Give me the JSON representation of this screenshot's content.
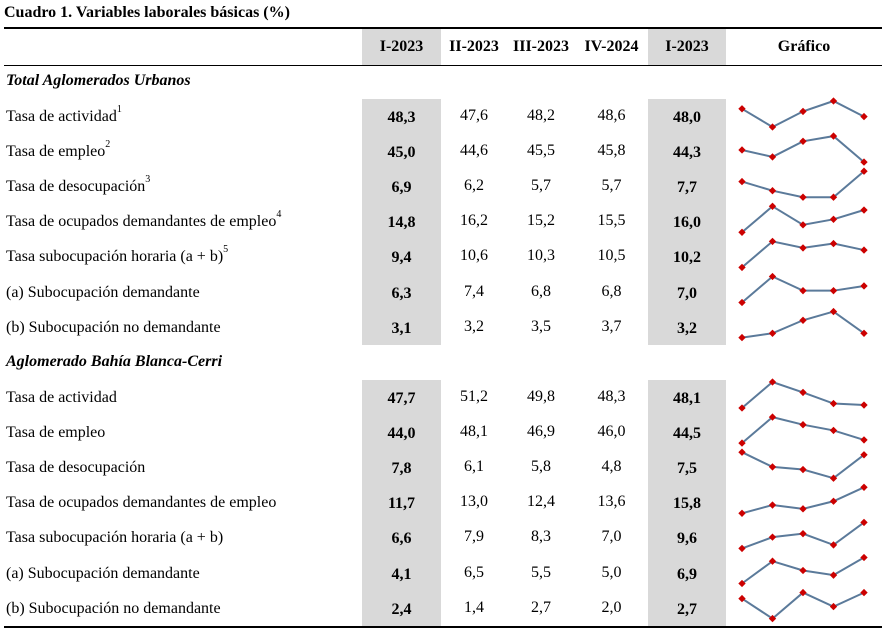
{
  "title": "Cuadro 1. Variables laborales básicas (%)",
  "headers": [
    "I-2023",
    "II-2023",
    "III-2023",
    "IV-2024",
    "I-2023",
    "Gráfico"
  ],
  "sections": [
    {
      "name": "Total Aglomerados Urbanos",
      "rows": [
        {
          "label": "Tasa de actividad",
          "sup": "1",
          "values": [
            "48,3",
            "47,6",
            "48,2",
            "48,6",
            "48,0"
          ]
        },
        {
          "label": "Tasa de empleo",
          "sup": "2",
          "values": [
            "45,0",
            "44,6",
            "45,5",
            "45,8",
            "44,3"
          ]
        },
        {
          "label": "Tasa de desocupación",
          "sup": "3",
          "values": [
            "6,9",
            "6,2",
            "5,7",
            "5,7",
            "7,7"
          ]
        },
        {
          "label": "Tasa de ocupados demandantes de empleo",
          "sup": "4",
          "values": [
            "14,8",
            "16,2",
            "15,2",
            "15,5",
            "16,0"
          ]
        },
        {
          "label": "Tasa subocupación horaria (a + b)",
          "sup": "5",
          "values": [
            "9,4",
            "10,6",
            "10,3",
            "10,5",
            "10,2"
          ]
        },
        {
          "label": "(a) Subocupación demandante",
          "sup": "",
          "values": [
            "6,3",
            "7,4",
            "6,8",
            "6,8",
            "7,0"
          ]
        },
        {
          "label": "(b) Subocupación no demandante",
          "sup": "",
          "values": [
            "3,1",
            "3,2",
            "3,5",
            "3,7",
            "3,2"
          ]
        }
      ]
    },
    {
      "name": "Aglomerado Bahía Blanca-Cerri",
      "rows": [
        {
          "label": "Tasa de actividad",
          "sup": "",
          "values": [
            "47,7",
            "51,2",
            "49,8",
            "48,3",
            "48,1"
          ]
        },
        {
          "label": "Tasa de empleo",
          "sup": "",
          "values": [
            "44,0",
            "48,1",
            "46,9",
            "46,0",
            "44,5"
          ]
        },
        {
          "label": "Tasa de desocupación",
          "sup": "",
          "values": [
            "7,8",
            "6,1",
            "5,8",
            "4,8",
            "7,5"
          ]
        },
        {
          "label": "Tasa de ocupados demandantes de empleo",
          "sup": "",
          "values": [
            "11,7",
            "13,0",
            "12,4",
            "13,6",
            "15,8"
          ]
        },
        {
          "label": "Tasa subocupación horaria (a + b)",
          "sup": "",
          "values": [
            "6,6",
            "7,9",
            "8,3",
            "7,0",
            "9,6"
          ]
        },
        {
          "label": "(a) Subocupación demandante",
          "sup": "",
          "values": [
            "4,1",
            "6,5",
            "5,5",
            "5,0",
            "6,9"
          ]
        },
        {
          "label": "(b) Subocupación no demandante",
          "sup": "",
          "values": [
            "2,4",
            "1,4",
            "2,7",
            "2,0",
            "2,7"
          ]
        }
      ]
    }
  ],
  "colors": {
    "shade": "#d9d9d9",
    "line": "#5b7a9a",
    "marker": "#cc0000"
  }
}
